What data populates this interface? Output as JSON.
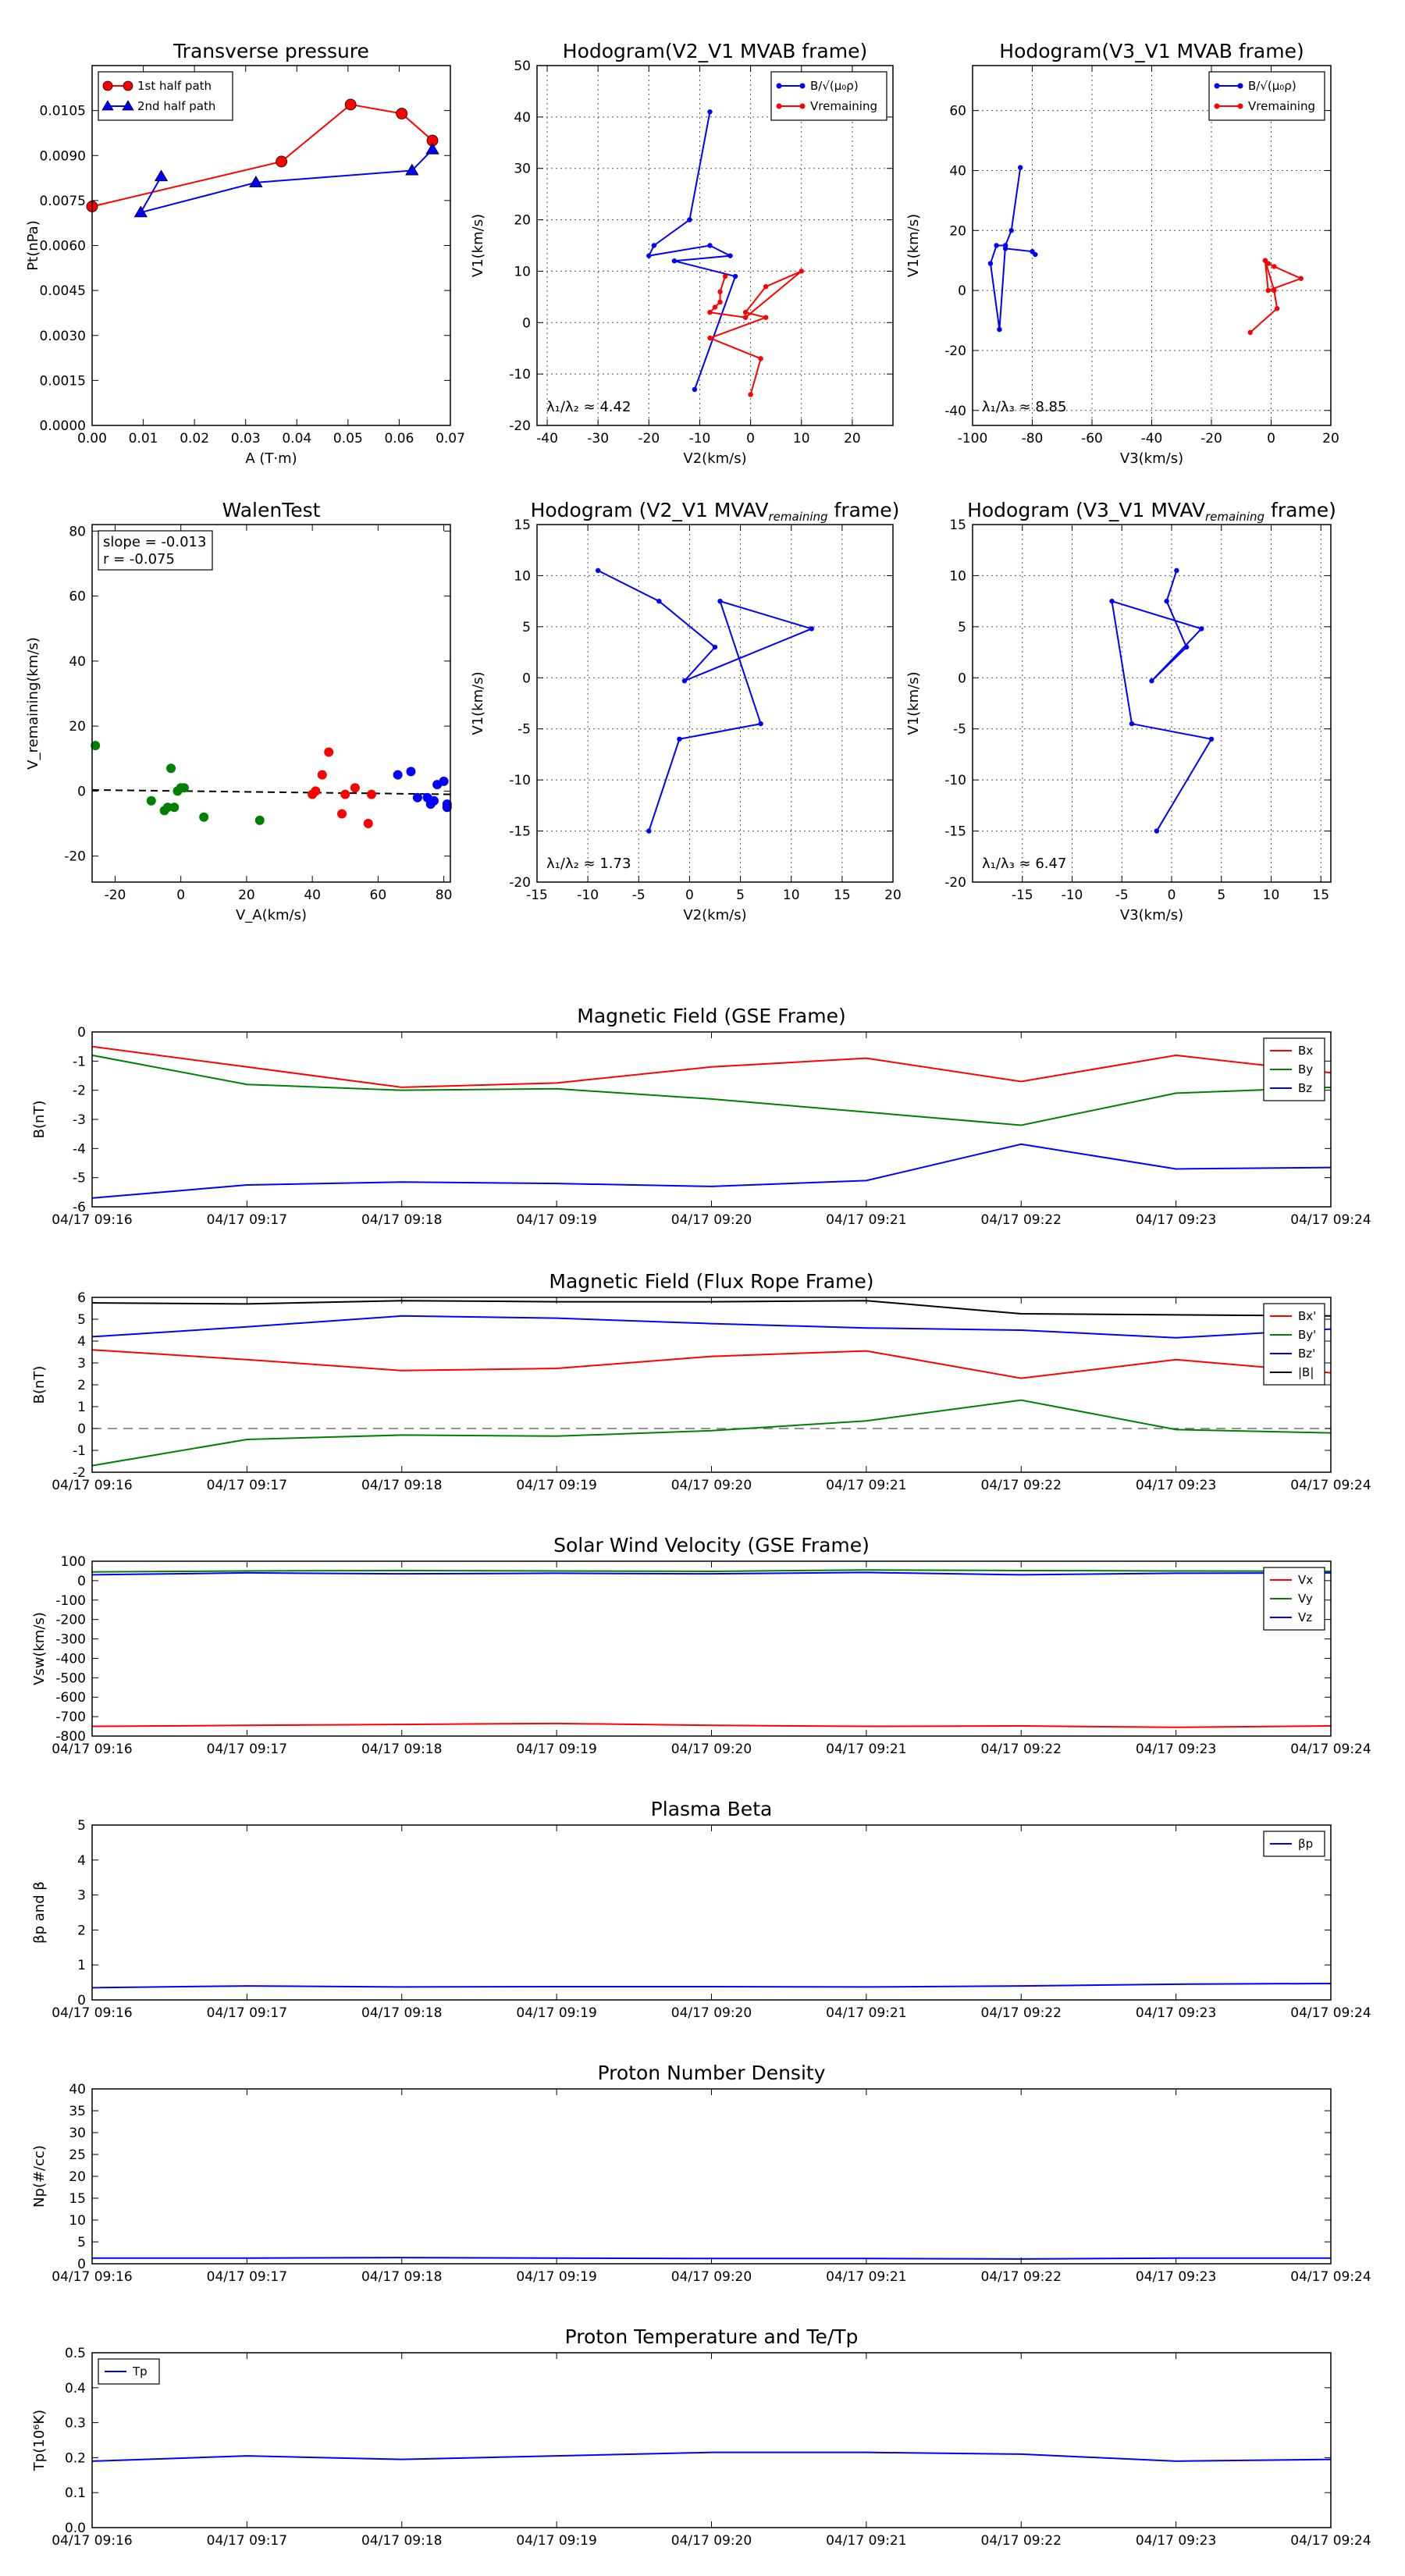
{
  "colors": {
    "red": "#ff0000",
    "blue": "#0000ff",
    "green": "#008000",
    "black": "#000000"
  },
  "chart_data": [
    {
      "id": "transverse_pressure",
      "type": "line",
      "title": "Transverse pressure",
      "xlabel": "A (T·m)",
      "ylabel": "Pt(nPa)",
      "xlim": [
        0,
        0.07
      ],
      "ylim": [
        0,
        0.012
      ],
      "xticks": [
        0,
        0.01,
        0.02,
        0.03,
        0.04,
        0.05,
        0.06,
        0.07
      ],
      "xtick_labels": [
        "0.00",
        "0.01",
        "0.02",
        "0.03",
        "0.04",
        "0.05",
        "0.06",
        "0.07"
      ],
      "yticks": [
        0,
        0.0015,
        0.003,
        0.0045,
        0.006,
        0.0075,
        0.009,
        0.0105
      ],
      "ytick_labels": [
        "0.0000",
        "0.0015",
        "0.0030",
        "0.0045",
        "0.0060",
        "0.0075",
        "0.0090",
        "0.0105"
      ],
      "grid": false,
      "legend_position": "top-left",
      "series": [
        {
          "name": "1st half path",
          "color": "red",
          "marker": "circle",
          "x": [
            0.0,
            0.037,
            0.0505,
            0.0605,
            0.0665
          ],
          "y": [
            0.0073,
            0.0088,
            0.0107,
            0.0104,
            0.0095
          ]
        },
        {
          "name": "2nd half path",
          "color": "blue",
          "marker": "triangle",
          "x": [
            0.0135,
            0.0095,
            0.032,
            0.0625,
            0.0665
          ],
          "y": [
            0.0083,
            0.0071,
            0.0081,
            0.0085,
            0.0092
          ]
        }
      ]
    },
    {
      "id": "hodogram_v2v1_mvab",
      "type": "line",
      "title": "Hodogram(V2_V1 MVAB frame)",
      "xlabel": "V2(km/s)",
      "ylabel": "V1(km/s)",
      "xlim": [
        -42,
        28
      ],
      "ylim": [
        -20,
        50
      ],
      "xticks": [
        -40,
        -30,
        -20,
        -10,
        0,
        10,
        20
      ],
      "yticks": [
        -20,
        -10,
        0,
        10,
        20,
        30,
        40,
        50
      ],
      "grid": true,
      "legend_position": "top-right",
      "annotation": "λ₁/λ₂ ≈ 4.42",
      "series": [
        {
          "name": "B/√(μ₀ρ)",
          "color": "blue",
          "x": [
            -8,
            -12,
            -19,
            -20,
            -8,
            -4,
            -15,
            -3,
            -11
          ],
          "y": [
            41,
            20,
            15,
            13,
            15,
            13,
            12,
            9,
            -13
          ]
        },
        {
          "name": "Vremaining",
          "color": "red",
          "x": [
            -5,
            -6,
            -6,
            -7,
            -8,
            -1,
            10,
            3,
            -1,
            3,
            -8,
            2,
            0
          ],
          "y": [
            9,
            6,
            4,
            3,
            2,
            1,
            10,
            7,
            2,
            1,
            -3,
            -7,
            -14
          ]
        }
      ]
    },
    {
      "id": "hodogram_v3v1_mvab",
      "type": "line",
      "title": "Hodogram(V3_V1 MVAB frame)",
      "xlabel": "V3(km/s)",
      "ylabel": "V1(km/s)",
      "xlim": [
        -100,
        20
      ],
      "ylim": [
        -45,
        75
      ],
      "xticks": [
        -100,
        -80,
        -60,
        -40,
        -20,
        0,
        20
      ],
      "yticks": [
        -40,
        -20,
        0,
        20,
        40,
        60
      ],
      "grid": true,
      "legend_position": "top-right",
      "annotation": "λ₁/λ₃ ≈ 8.85",
      "series": [
        {
          "name": "B/√(μ₀ρ)",
          "color": "blue",
          "x": [
            -84,
            -87,
            -89,
            -92,
            -94,
            -91,
            -89,
            -89,
            -80,
            -79
          ],
          "y": [
            41,
            20,
            15,
            15,
            9,
            -13,
            15,
            14,
            13,
            12
          ]
        },
        {
          "name": "Vremaining",
          "color": "red",
          "x": [
            -2,
            -1,
            1,
            10,
            -1,
            -2,
            1,
            2,
            -7
          ],
          "y": [
            10,
            9,
            8,
            4,
            0,
            10,
            0,
            -6,
            -14
          ]
        }
      ]
    },
    {
      "id": "walen_test",
      "type": "scatter",
      "title": "WalenTest",
      "xlabel": "V_A(km/s)",
      "ylabel": "V_remaining(km/s)",
      "xlim": [
        -27,
        82
      ],
      "ylim": [
        -28,
        82
      ],
      "xticks": [
        -20,
        0,
        20,
        40,
        60,
        80
      ],
      "yticks": [
        -20,
        0,
        20,
        40,
        60,
        80
      ],
      "grid": false,
      "annotation_lines": [
        "slope = -0.013",
        "r = -0.075"
      ],
      "fit_line": {
        "x": [
          -27,
          82
        ],
        "y": [
          0.35,
          -1.0
        ]
      },
      "series": [
        {
          "name": "",
          "color": "green",
          "x": [
            -26,
            -5,
            -3,
            -2,
            -1,
            0,
            1,
            7,
            24,
            -9,
            -4
          ],
          "y": [
            14,
            -6,
            7,
            -5,
            0,
            1,
            1,
            -8,
            -9,
            -3,
            -5
          ]
        },
        {
          "name": "",
          "color": "red",
          "x": [
            40,
            41,
            43,
            45,
            49,
            50,
            53,
            57,
            58
          ],
          "y": [
            -1,
            0,
            5,
            12,
            -7,
            -1,
            1,
            -10,
            -1
          ]
        },
        {
          "name": "",
          "color": "blue",
          "x": [
            66,
            70,
            72,
            75,
            76,
            77,
            78,
            80,
            81,
            81
          ],
          "y": [
            5,
            6,
            -2,
            -2,
            -4,
            -3,
            2,
            3,
            -4,
            -5
          ]
        }
      ]
    },
    {
      "id": "hodogram_v2v1_mvav",
      "type": "line",
      "title": "Hodogram (V2_V1 MVAV",
      "title_sub": "remaining",
      "title_end": " frame)",
      "xlabel": "V2(km/s)",
      "ylabel": "V1(km/s)",
      "xlim": [
        -15,
        20
      ],
      "ylim": [
        -20,
        15
      ],
      "xticks": [
        -15,
        -10,
        -5,
        0,
        5,
        10,
        15,
        20
      ],
      "yticks": [
        -20,
        -15,
        -10,
        -5,
        0,
        5,
        10,
        15
      ],
      "grid": true,
      "annotation": "λ₁/λ₂ ≈ 1.73",
      "series": [
        {
          "name": "",
          "color": "blue",
          "x": [
            -9,
            -3,
            2.5,
            -0.5,
            12,
            3,
            7,
            -1,
            -4
          ],
          "y": [
            10.5,
            7.5,
            3,
            -0.3,
            4.8,
            7.5,
            -4.5,
            -6,
            -15
          ]
        }
      ]
    },
    {
      "id": "hodogram_v3v1_mvav",
      "type": "line",
      "title": "Hodogram (V3_V1 MVAV",
      "title_sub": "remaining",
      "title_end": " frame)",
      "xlabel": "V3(km/s)",
      "ylabel": "V1(km/s)",
      "xlim": [
        -20,
        16
      ],
      "ylim": [
        -20,
        15
      ],
      "xticks": [
        -15,
        -10,
        -5,
        0,
        5,
        10,
        15
      ],
      "yticks": [
        -20,
        -15,
        -10,
        -5,
        0,
        5,
        10,
        15
      ],
      "grid": true,
      "annotation": "λ₁/λ₃ ≈ 6.47",
      "series": [
        {
          "name": "",
          "color": "blue",
          "x": [
            0.5,
            -0.5,
            1.5,
            -2,
            3,
            -6,
            -4,
            4,
            -1.5
          ],
          "y": [
            10.5,
            7.5,
            3,
            -0.3,
            4.8,
            7.5,
            -4.5,
            -6,
            -15
          ]
        }
      ]
    },
    {
      "id": "magnetic_field_gse",
      "type": "line",
      "title": "Magnetic Field (GSE Frame)",
      "ylabel": "B(nT)",
      "ylim": [
        -6,
        0
      ],
      "yticks": [
        -6,
        -5,
        -4,
        -3,
        -2,
        -1,
        0
      ],
      "x": [
        "04/17 09:16",
        "04/17 09:17",
        "04/17 09:18",
        "04/17 09:19",
        "04/17 09:20",
        "04/17 09:21",
        "04/17 09:22",
        "04/17 09:23",
        "04/17 09:24"
      ],
      "legend_position": "top-right",
      "series": [
        {
          "name": "Bx",
          "color": "red",
          "values": [
            -0.5,
            -1.2,
            -1.9,
            -1.75,
            -1.2,
            -0.9,
            -1.7,
            -0.8,
            -1.4
          ]
        },
        {
          "name": "By",
          "color": "green",
          "values": [
            -0.8,
            -1.8,
            -2.0,
            -1.95,
            -2.3,
            -2.75,
            -3.2,
            -2.1,
            -1.9
          ]
        },
        {
          "name": "Bz",
          "color": "blue",
          "values": [
            -5.7,
            -5.25,
            -5.15,
            -5.2,
            -5.3,
            -5.1,
            -3.85,
            -4.7,
            -4.65
          ]
        }
      ]
    },
    {
      "id": "magnetic_field_fluxrope",
      "type": "line",
      "title": "Magnetic Field (Flux Rope Frame)",
      "ylabel": "B(nT)",
      "ylim": [
        -2,
        6
      ],
      "yticks": [
        -2,
        -1,
        0,
        1,
        2,
        3,
        4,
        5,
        6
      ],
      "x": [
        "04/17 09:16",
        "04/17 09:17",
        "04/17 09:18",
        "04/17 09:19",
        "04/17 09:20",
        "04/17 09:21",
        "04/17 09:22",
        "04/17 09:23",
        "04/17 09:24"
      ],
      "legend_position": "top-right",
      "zero_line": true,
      "series": [
        {
          "name": "Bx'",
          "color": "red",
          "values": [
            3.6,
            3.15,
            2.65,
            2.75,
            3.3,
            3.55,
            2.3,
            3.15,
            2.55
          ]
        },
        {
          "name": "By'",
          "color": "green",
          "values": [
            -1.7,
            -0.5,
            -0.3,
            -0.35,
            -0.1,
            0.35,
            1.3,
            -0.05,
            -0.2
          ]
        },
        {
          "name": "Bz'",
          "color": "blue",
          "values": [
            4.2,
            4.65,
            5.15,
            5.05,
            4.8,
            4.6,
            4.5,
            4.15,
            4.55
          ]
        },
        {
          "name": "|B|",
          "color": "black",
          "values": [
            5.75,
            5.7,
            5.85,
            5.8,
            5.8,
            5.85,
            5.25,
            5.2,
            5.15
          ]
        }
      ]
    },
    {
      "id": "solar_wind_velocity",
      "type": "line",
      "title": "Solar Wind Velocity (GSE Frame)",
      "ylabel": "Vsw(km/s)",
      "ylim": [
        -800,
        100
      ],
      "yticks": [
        -800,
        -700,
        -600,
        -500,
        -400,
        -300,
        -200,
        -100,
        0,
        100
      ],
      "x": [
        "04/17 09:16",
        "04/17 09:17",
        "04/17 09:18",
        "04/17 09:19",
        "04/17 09:20",
        "04/17 09:21",
        "04/17 09:22",
        "04/17 09:23",
        "04/17 09:24"
      ],
      "legend_position": "top-right",
      "series": [
        {
          "name": "Vx",
          "color": "red",
          "values": [
            -750,
            -745,
            -740,
            -735,
            -745,
            -750,
            -748,
            -755,
            -748
          ]
        },
        {
          "name": "Vy",
          "color": "green",
          "values": [
            45,
            50,
            52,
            50,
            48,
            55,
            52,
            50,
            48
          ]
        },
        {
          "name": "Vz",
          "color": "blue",
          "values": [
            30,
            40,
            35,
            38,
            35,
            42,
            30,
            38,
            40
          ]
        }
      ]
    },
    {
      "id": "plasma_beta",
      "type": "line",
      "title": "Plasma Beta",
      "ylabel": "βp and β",
      "ylim": [
        0,
        5
      ],
      "yticks": [
        0,
        1,
        2,
        3,
        4,
        5
      ],
      "x": [
        "04/17 09:16",
        "04/17 09:17",
        "04/17 09:18",
        "04/17 09:19",
        "04/17 09:20",
        "04/17 09:21",
        "04/17 09:22",
        "04/17 09:23",
        "04/17 09:24"
      ],
      "legend_position": "top-right",
      "series": [
        {
          "name": "βp",
          "color": "blue",
          "values": [
            0.35,
            0.4,
            0.37,
            0.38,
            0.38,
            0.37,
            0.4,
            0.45,
            0.47
          ]
        }
      ]
    },
    {
      "id": "proton_density",
      "type": "line",
      "title": "Proton Number Density",
      "ylabel": "Np(#/cc)",
      "ylim": [
        0,
        40
      ],
      "yticks": [
        0,
        5,
        10,
        15,
        20,
        25,
        30,
        35,
        40
      ],
      "x": [
        "04/17 09:16",
        "04/17 09:17",
        "04/17 09:18",
        "04/17 09:19",
        "04/17 09:20",
        "04/17 09:21",
        "04/17 09:22",
        "04/17 09:23",
        "04/17 09:24"
      ],
      "series": [
        {
          "name": "",
          "color": "blue",
          "values": [
            1.3,
            1.3,
            1.4,
            1.3,
            1.2,
            1.2,
            1.1,
            1.3,
            1.3
          ]
        }
      ]
    },
    {
      "id": "proton_temperature",
      "type": "line",
      "title": "Proton Temperature and Te/Tp",
      "ylabel": "Tp(10⁶K)",
      "ylim": [
        0,
        0.5
      ],
      "yticks": [
        0,
        0.1,
        0.2,
        0.3,
        0.4,
        0.5
      ],
      "ytick_labels": [
        "0.0",
        "0.1",
        "0.2",
        "0.3",
        "0.4",
        "0.5"
      ],
      "x": [
        "04/17 09:16",
        "04/17 09:17",
        "04/17 09:18",
        "04/17 09:19",
        "04/17 09:20",
        "04/17 09:21",
        "04/17 09:22",
        "04/17 09:23",
        "04/17 09:24"
      ],
      "legend_position": "top-left",
      "series": [
        {
          "name": "Tp",
          "color": "blue",
          "values": [
            0.19,
            0.205,
            0.195,
            0.205,
            0.215,
            0.215,
            0.21,
            0.19,
            0.195
          ]
        }
      ]
    }
  ]
}
